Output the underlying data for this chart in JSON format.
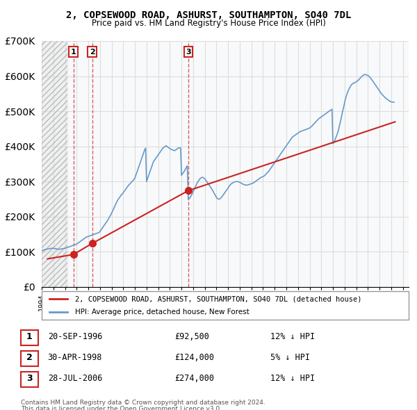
{
  "title": "2, COPSEWOOD ROAD, ASHURST, SOUTHAMPTON, SO40 7DL",
  "subtitle": "Price paid vs. HM Land Registry's House Price Index (HPI)",
  "ylabel": "",
  "hpi_color": "#6699cc",
  "price_color": "#cc2222",
  "hatch_color": "#cccccc",
  "legend_property_label": "2, COPSEWOOD ROAD, ASHURST, SOUTHAMPTON, SO40 7DL (detached house)",
  "legend_hpi_label": "HPI: Average price, detached house, New Forest",
  "transactions": [
    {
      "label": "1",
      "date": "20-SEP-1996",
      "price": 92500,
      "pct": "12% ↓ HPI",
      "x_year": 1996.72
    },
    {
      "label": "2",
      "date": "30-APR-1998",
      "price": 124000,
      "pct": "5% ↓ HPI",
      "x_year": 1998.33
    },
    {
      "label": "3",
      "date": "28-JUL-2006",
      "price": 274000,
      "pct": "12% ↓ HPI",
      "x_year": 2006.57
    }
  ],
  "footer_line1": "Contains HM Land Registry data © Crown copyright and database right 2024.",
  "footer_line2": "This data is licensed under the Open Government Licence v3.0.",
  "hpi_data": {
    "years": [
      1994.0,
      1994.08,
      1994.17,
      1994.25,
      1994.33,
      1994.42,
      1994.5,
      1994.58,
      1994.67,
      1994.75,
      1994.83,
      1994.92,
      1995.0,
      1995.08,
      1995.17,
      1995.25,
      1995.33,
      1995.42,
      1995.5,
      1995.58,
      1995.67,
      1995.75,
      1995.83,
      1995.92,
      1996.0,
      1996.08,
      1996.17,
      1996.25,
      1996.33,
      1996.42,
      1996.5,
      1996.58,
      1996.67,
      1996.75,
      1996.83,
      1996.92,
      1997.0,
      1997.08,
      1997.17,
      1997.25,
      1997.33,
      1997.42,
      1997.5,
      1997.58,
      1997.67,
      1997.75,
      1997.83,
      1997.92,
      1998.0,
      1998.08,
      1998.17,
      1998.25,
      1998.33,
      1998.42,
      1998.5,
      1998.58,
      1998.67,
      1998.75,
      1998.83,
      1998.92,
      1999.0,
      1999.08,
      1999.17,
      1999.25,
      1999.33,
      1999.42,
      1999.5,
      1999.58,
      1999.67,
      1999.75,
      1999.83,
      1999.92,
      2000.0,
      2000.08,
      2000.17,
      2000.25,
      2000.33,
      2000.42,
      2000.5,
      2000.58,
      2000.67,
      2000.75,
      2000.83,
      2000.92,
      2001.0,
      2001.08,
      2001.17,
      2001.25,
      2001.33,
      2001.42,
      2001.5,
      2001.58,
      2001.67,
      2001.75,
      2001.83,
      2001.92,
      2002.0,
      2002.08,
      2002.17,
      2002.25,
      2002.33,
      2002.42,
      2002.5,
      2002.58,
      2002.67,
      2002.75,
      2002.83,
      2002.92,
      2003.0,
      2003.08,
      2003.17,
      2003.25,
      2003.33,
      2003.42,
      2003.5,
      2003.58,
      2003.67,
      2003.75,
      2003.83,
      2003.92,
      2004.0,
      2004.08,
      2004.17,
      2004.25,
      2004.33,
      2004.42,
      2004.5,
      2004.58,
      2004.67,
      2004.75,
      2004.83,
      2004.92,
      2005.0,
      2005.08,
      2005.17,
      2005.25,
      2005.33,
      2005.42,
      2005.5,
      2005.58,
      2005.67,
      2005.75,
      2005.83,
      2005.92,
      2006.0,
      2006.08,
      2006.17,
      2006.25,
      2006.33,
      2006.42,
      2006.5,
      2006.58,
      2006.67,
      2006.75,
      2006.83,
      2006.92,
      2007.0,
      2007.08,
      2007.17,
      2007.25,
      2007.33,
      2007.42,
      2007.5,
      2007.58,
      2007.67,
      2007.75,
      2007.83,
      2007.92,
      2008.0,
      2008.08,
      2008.17,
      2008.25,
      2008.33,
      2008.42,
      2008.5,
      2008.58,
      2008.67,
      2008.75,
      2008.83,
      2008.92,
      2009.0,
      2009.08,
      2009.17,
      2009.25,
      2009.33,
      2009.42,
      2009.5,
      2009.58,
      2009.67,
      2009.75,
      2009.83,
      2009.92,
      2010.0,
      2010.08,
      2010.17,
      2010.25,
      2010.33,
      2010.42,
      2010.5,
      2010.58,
      2010.67,
      2010.75,
      2010.83,
      2010.92,
      2011.0,
      2011.08,
      2011.17,
      2011.25,
      2011.33,
      2011.42,
      2011.5,
      2011.58,
      2011.67,
      2011.75,
      2011.83,
      2011.92,
      2012.0,
      2012.08,
      2012.17,
      2012.25,
      2012.33,
      2012.42,
      2012.5,
      2012.58,
      2012.67,
      2012.75,
      2012.83,
      2012.92,
      2013.0,
      2013.08,
      2013.17,
      2013.25,
      2013.33,
      2013.42,
      2013.5,
      2013.58,
      2013.67,
      2013.75,
      2013.83,
      2013.92,
      2014.0,
      2014.08,
      2014.17,
      2014.25,
      2014.33,
      2014.42,
      2014.5,
      2014.58,
      2014.67,
      2014.75,
      2014.83,
      2014.92,
      2015.0,
      2015.08,
      2015.17,
      2015.25,
      2015.33,
      2015.42,
      2015.5,
      2015.58,
      2015.67,
      2015.75,
      2015.83,
      2015.92,
      2016.0,
      2016.08,
      2016.17,
      2016.25,
      2016.33,
      2016.42,
      2016.5,
      2016.58,
      2016.67,
      2016.75,
      2016.83,
      2016.92,
      2017.0,
      2017.08,
      2017.17,
      2017.25,
      2017.33,
      2017.42,
      2017.5,
      2017.58,
      2017.67,
      2017.75,
      2017.83,
      2017.92,
      2018.0,
      2018.08,
      2018.17,
      2018.25,
      2018.33,
      2018.42,
      2018.5,
      2018.58,
      2018.67,
      2018.75,
      2018.83,
      2018.92,
      2019.0,
      2019.08,
      2019.17,
      2019.25,
      2019.33,
      2019.42,
      2019.5,
      2019.58,
      2019.67,
      2019.75,
      2019.83,
      2019.92,
      2020.0,
      2020.08,
      2020.17,
      2020.25,
      2020.33,
      2020.42,
      2020.5,
      2020.58,
      2020.67,
      2020.75,
      2020.83,
      2020.92,
      2021.0,
      2021.08,
      2021.17,
      2021.25,
      2021.33,
      2021.42,
      2021.5,
      2021.58,
      2021.67,
      2021.75,
      2021.83,
      2021.92,
      2022.0,
      2022.08,
      2022.17,
      2022.25,
      2022.33,
      2022.42,
      2022.5,
      2022.58,
      2022.67,
      2022.75,
      2022.83,
      2022.92,
      2023.0,
      2023.08,
      2023.17,
      2023.25,
      2023.33,
      2023.42,
      2023.5,
      2023.58,
      2023.67,
      2023.75,
      2023.83,
      2023.92,
      2024.0,
      2024.08,
      2024.17,
      2024.25
    ],
    "values": [
      103000,
      104000,
      105000,
      106000,
      107000,
      107500,
      108000,
      108500,
      109000,
      109500,
      110000,
      110500,
      110000,
      109500,
      109000,
      108500,
      108000,
      107500,
      107500,
      107800,
      108000,
      108500,
      109000,
      109500,
      110000,
      111000,
      112000,
      113000,
      114000,
      115000,
      116000,
      117000,
      118000,
      119000,
      120000,
      121000,
      122000,
      124000,
      126000,
      128000,
      130000,
      132000,
      134000,
      136000,
      138000,
      140000,
      142000,
      143000,
      144000,
      145000,
      146000,
      147000,
      148000,
      149000,
      150000,
      151000,
      152000,
      153000,
      154000,
      155000,
      158000,
      162000,
      166000,
      170000,
      174000,
      178000,
      182000,
      186000,
      190000,
      195000,
      200000,
      205000,
      210000,
      216000,
      222000,
      228000,
      234000,
      240000,
      246000,
      250000,
      254000,
      258000,
      262000,
      265000,
      268000,
      272000,
      276000,
      280000,
      284000,
      288000,
      291000,
      294000,
      297000,
      300000,
      303000,
      306000,
      310000,
      318000,
      326000,
      334000,
      342000,
      350000,
      358000,
      366000,
      374000,
      382000,
      390000,
      395000,
      300000,
      308000,
      316000,
      324000,
      332000,
      340000,
      348000,
      356000,
      360000,
      364000,
      368000,
      372000,
      376000,
      380000,
      384000,
      388000,
      392000,
      396000,
      398000,
      400000,
      402000,
      400000,
      398000,
      396000,
      394000,
      392000,
      391000,
      390000,
      389000,
      388000,
      390000,
      392000,
      394000,
      396000,
      396000,
      396000,
      318000,
      322000,
      326000,
      330000,
      335000,
      340000,
      345000,
      250000,
      252000,
      255000,
      260000,
      265000,
      271000,
      277000,
      283000,
      289000,
      295000,
      300000,
      304000,
      308000,
      310000,
      312000,
      312000,
      310000,
      308000,
      304000,
      300000,
      296000,
      292000,
      288000,
      284000,
      280000,
      275000,
      270000,
      265000,
      260000,
      255000,
      252000,
      250000,
      250000,
      252000,
      255000,
      258000,
      262000,
      266000,
      270000,
      274000,
      278000,
      282000,
      286000,
      290000,
      293000,
      295000,
      297000,
      298000,
      299000,
      300000,
      300000,
      300000,
      299000,
      298000,
      296000,
      295000,
      293000,
      292000,
      291000,
      290000,
      290000,
      290000,
      291000,
      292000,
      293000,
      294000,
      295000,
      296000,
      298000,
      300000,
      302000,
      304000,
      306000,
      308000,
      310000,
      312000,
      313000,
      314000,
      316000,
      318000,
      321000,
      324000,
      327000,
      330000,
      334000,
      338000,
      342000,
      346000,
      350000,
      354000,
      358000,
      362000,
      366000,
      370000,
      374000,
      378000,
      382000,
      386000,
      390000,
      394000,
      398000,
      402000,
      406000,
      410000,
      414000,
      418000,
      422000,
      426000,
      428000,
      430000,
      432000,
      434000,
      436000,
      438000,
      440000,
      442000,
      443000,
      444000,
      445000,
      446000,
      447000,
      448000,
      449000,
      450000,
      451000,
      453000,
      455000,
      457000,
      460000,
      463000,
      466000,
      469000,
      472000,
      475000,
      478000,
      480000,
      482000,
      484000,
      486000,
      488000,
      490000,
      492000,
      494000,
      496000,
      498000,
      500000,
      502000,
      504000,
      506000,
      408000,
      412000,
      418000,
      425000,
      432000,
      440000,
      450000,
      462000,
      474000,
      487000,
      500000,
      512000,
      524000,
      536000,
      545000,
      553000,
      560000,
      566000,
      571000,
      575000,
      578000,
      580000,
      581000,
      582000,
      584000,
      586000,
      588000,
      591000,
      594000,
      597000,
      600000,
      602000,
      604000,
      605000,
      604000,
      603000,
      602000,
      600000,
      597000,
      594000,
      590000,
      586000,
      582000,
      578000,
      574000,
      570000,
      566000,
      562000,
      558000,
      554000,
      550000,
      547000,
      544000,
      541000,
      538000,
      536000,
      534000,
      532000,
      530000,
      528000,
      527000,
      526000,
      526000,
      526000
    ]
  },
  "price_data_x": [
    1994.5,
    1996.72,
    1998.33,
    2006.57,
    2024.33
  ],
  "price_data_y": [
    80000,
    92500,
    124000,
    274000,
    470000
  ],
  "xmin": 1994.0,
  "xmax": 2025.5,
  "ymin": 0,
  "ymax": 700000,
  "hatch_xmax": 1996.2,
  "background_color": "#f0f4f8"
}
